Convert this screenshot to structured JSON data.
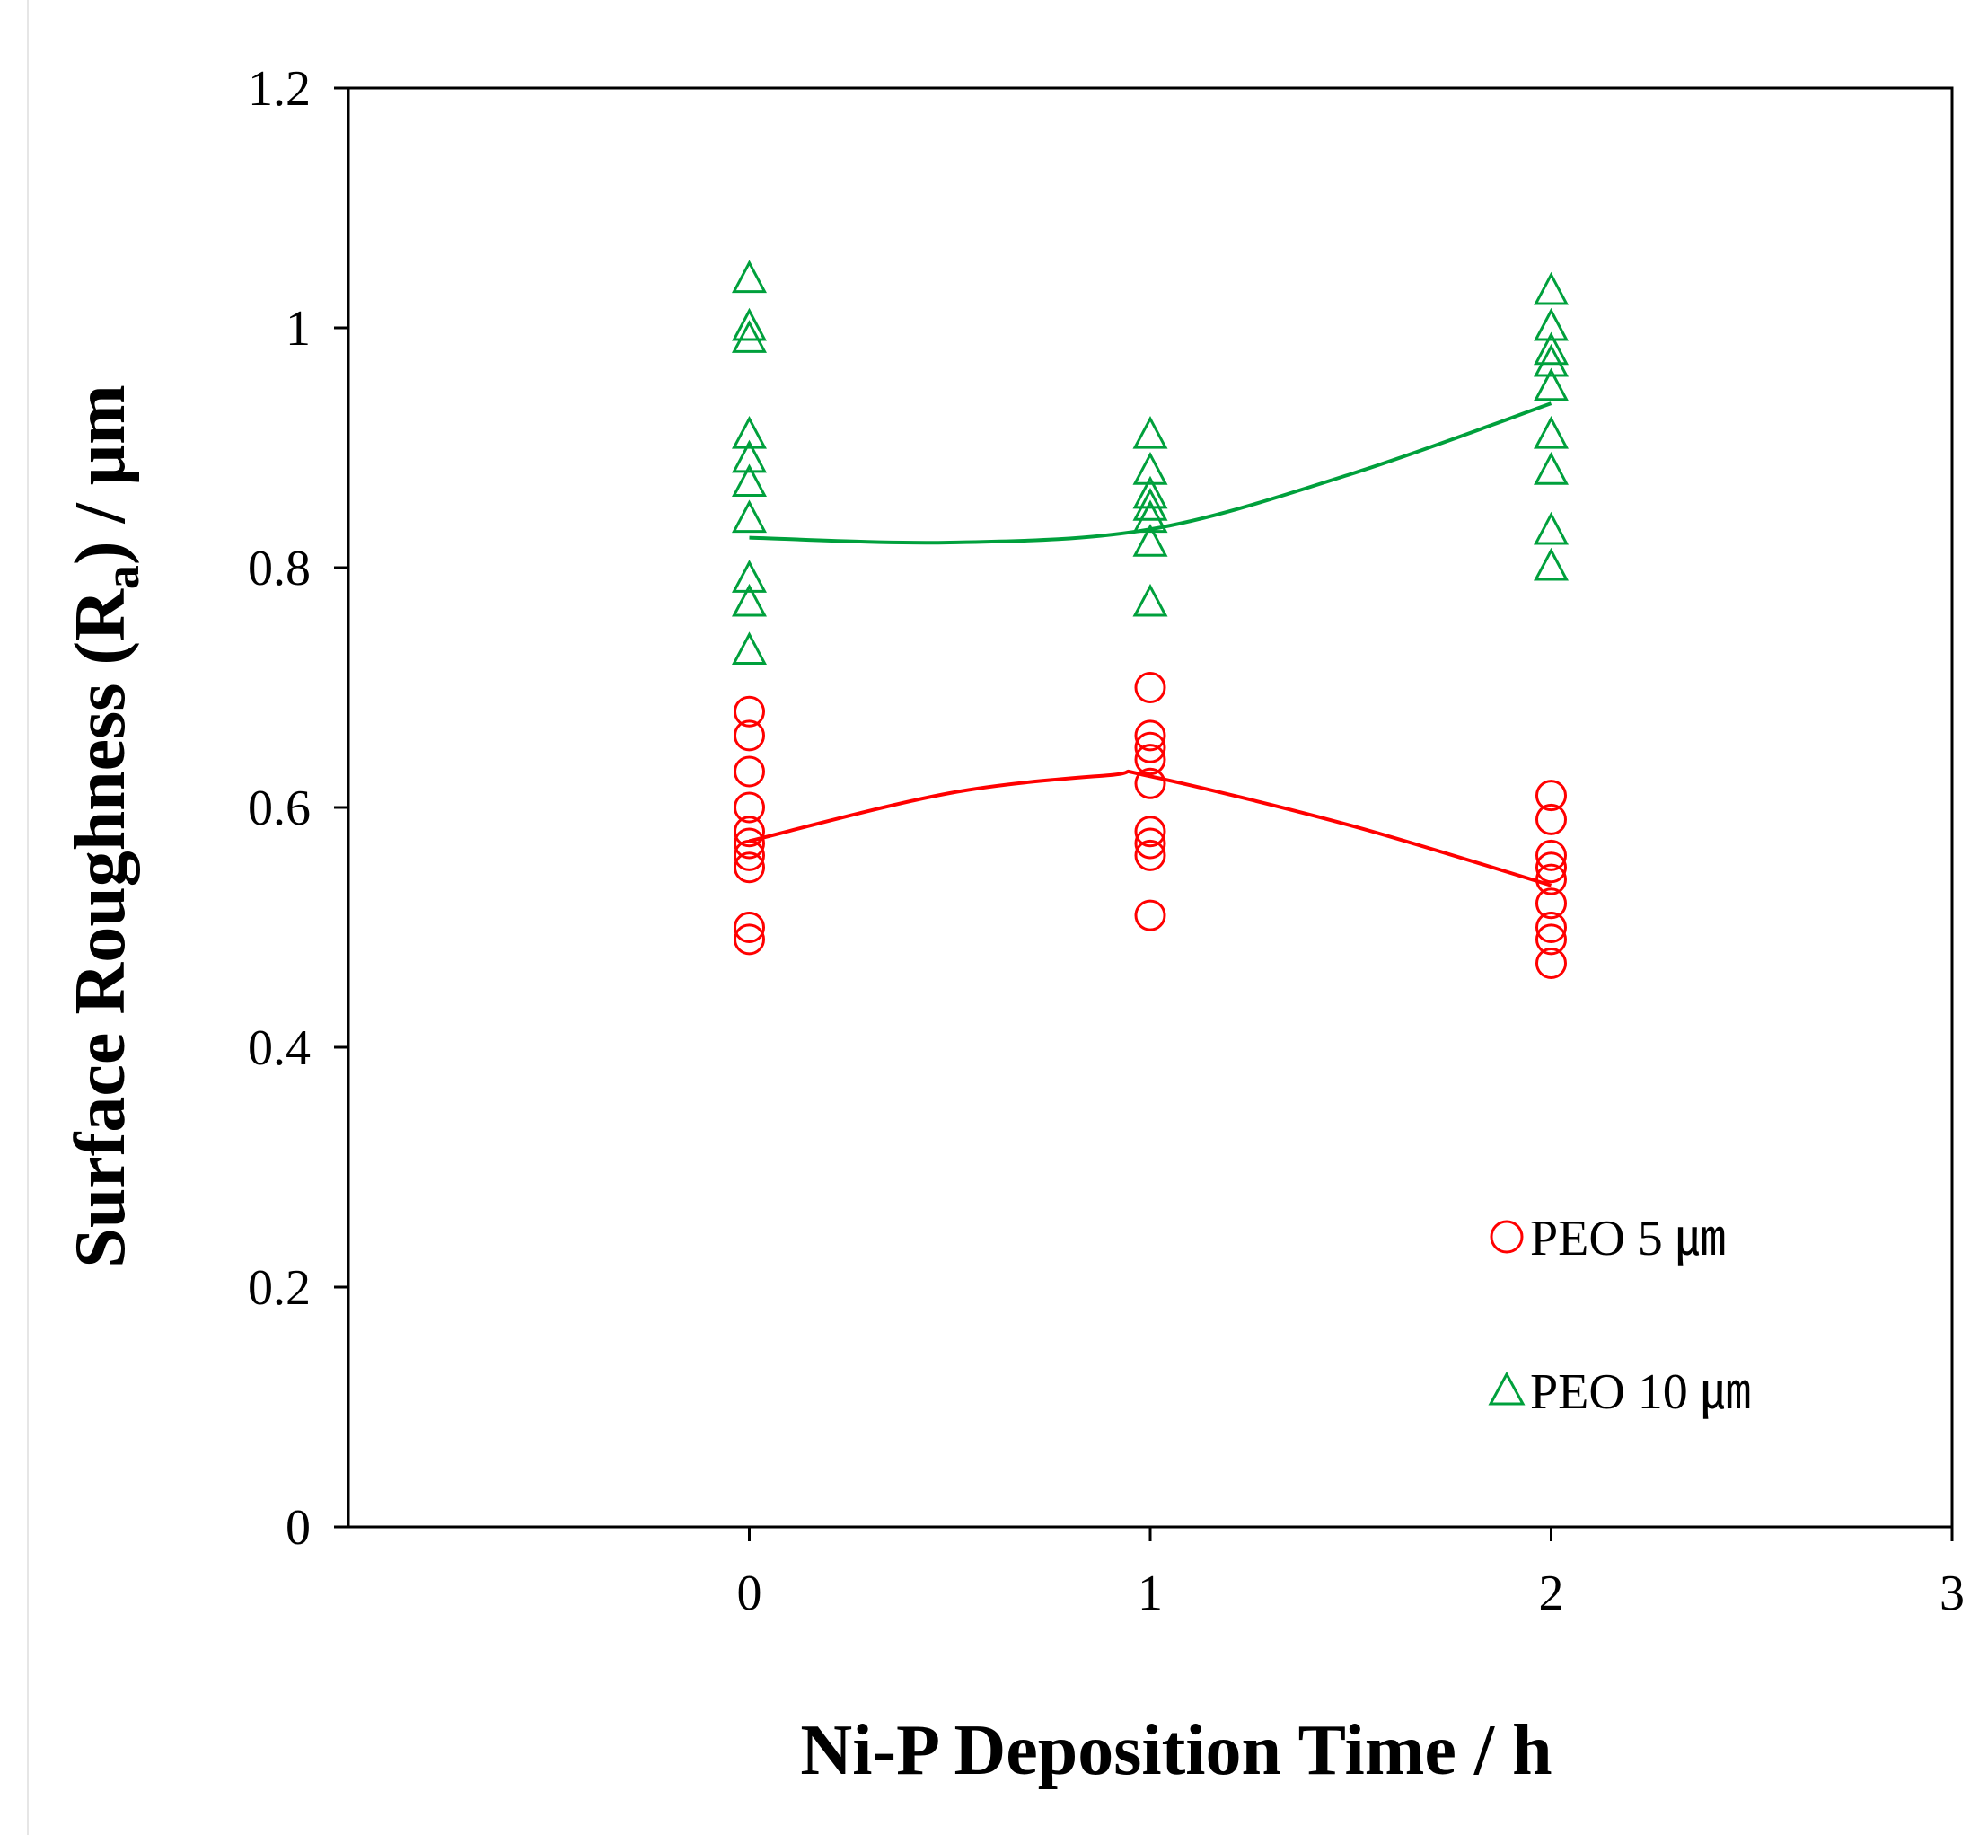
{
  "chart_data": {
    "type": "scatter",
    "title": "",
    "xlabel": "Ni-P Deposition Time  / h",
    "ylabel_parts": {
      "main": "Surface Roughness (R",
      "sub": "a",
      "tail": ") / μm"
    },
    "xlim": [
      -1,
      3
    ],
    "ylim": [
      0,
      1.2
    ],
    "x_ticks": [
      0,
      1,
      2,
      3
    ],
    "x_tick_labels": [
      "0",
      "1",
      "2",
      "3"
    ],
    "y_ticks": [
      0,
      0.2,
      0.4,
      0.6,
      0.8,
      1.0,
      1.2
    ],
    "y_tick_labels": [
      "0",
      "0.2",
      "0.4",
      "0.6",
      "0.8",
      "1",
      "1.2"
    ],
    "grid": false,
    "legend_position": "bottom-right",
    "series": [
      {
        "name": "PEO 5 ㎛",
        "marker": "circle",
        "color": "#ff0000",
        "points": [
          {
            "x": 0,
            "y": 0.68
          },
          {
            "x": 0,
            "y": 0.66
          },
          {
            "x": 0,
            "y": 0.63
          },
          {
            "x": 0,
            "y": 0.6
          },
          {
            "x": 0,
            "y": 0.58
          },
          {
            "x": 0,
            "y": 0.57
          },
          {
            "x": 0,
            "y": 0.56
          },
          {
            "x": 0,
            "y": 0.55
          },
          {
            "x": 0,
            "y": 0.5
          },
          {
            "x": 0,
            "y": 0.49
          },
          {
            "x": 1,
            "y": 0.7
          },
          {
            "x": 1,
            "y": 0.66
          },
          {
            "x": 1,
            "y": 0.65
          },
          {
            "x": 1,
            "y": 0.64
          },
          {
            "x": 1,
            "y": 0.62
          },
          {
            "x": 1,
            "y": 0.58
          },
          {
            "x": 1,
            "y": 0.57
          },
          {
            "x": 1,
            "y": 0.56
          },
          {
            "x": 1,
            "y": 0.51
          },
          {
            "x": 2,
            "y": 0.61
          },
          {
            "x": 2,
            "y": 0.59
          },
          {
            "x": 2,
            "y": 0.56
          },
          {
            "x": 2,
            "y": 0.55
          },
          {
            "x": 2,
            "y": 0.54
          },
          {
            "x": 2,
            "y": 0.52
          },
          {
            "x": 2,
            "y": 0.5
          },
          {
            "x": 2,
            "y": 0.49
          },
          {
            "x": 2,
            "y": 0.47
          }
        ],
        "trend": [
          [
            0,
            0.572
          ],
          [
            0.5,
            0.612
          ],
          [
            0.9,
            0.627
          ],
          [
            1,
            0.626
          ],
          [
            1.5,
            0.585
          ],
          [
            2,
            0.535
          ]
        ]
      },
      {
        "name": "PEO 10 ㎛",
        "marker": "triangle",
        "color": "#00a03c",
        "points": [
          {
            "x": 0,
            "y": 1.04
          },
          {
            "x": 0,
            "y": 1.0
          },
          {
            "x": 0,
            "y": 0.99
          },
          {
            "x": 0,
            "y": 0.91
          },
          {
            "x": 0,
            "y": 0.89
          },
          {
            "x": 0,
            "y": 0.87
          },
          {
            "x": 0,
            "y": 0.84
          },
          {
            "x": 0,
            "y": 0.79
          },
          {
            "x": 0,
            "y": 0.77
          },
          {
            "x": 0,
            "y": 0.73
          },
          {
            "x": 1,
            "y": 0.91
          },
          {
            "x": 1,
            "y": 0.88
          },
          {
            "x": 1,
            "y": 0.86
          },
          {
            "x": 1,
            "y": 0.85
          },
          {
            "x": 1,
            "y": 0.84
          },
          {
            "x": 1,
            "y": 0.82
          },
          {
            "x": 1,
            "y": 0.77
          },
          {
            "x": 2,
            "y": 1.03
          },
          {
            "x": 2,
            "y": 1.0
          },
          {
            "x": 2,
            "y": 0.98
          },
          {
            "x": 2,
            "y": 0.97
          },
          {
            "x": 2,
            "y": 0.95
          },
          {
            "x": 2,
            "y": 0.91
          },
          {
            "x": 2,
            "y": 0.88
          },
          {
            "x": 2,
            "y": 0.83
          },
          {
            "x": 2,
            "y": 0.8
          }
        ],
        "trend": [
          [
            0,
            0.825
          ],
          [
            0.5,
            0.821
          ],
          [
            1,
            0.832
          ],
          [
            1.5,
            0.878
          ],
          [
            2,
            0.937
          ]
        ]
      }
    ]
  }
}
